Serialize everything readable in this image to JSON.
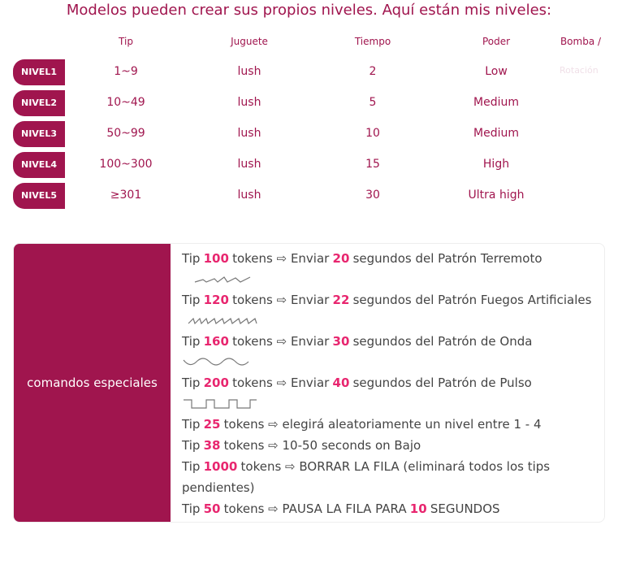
{
  "header": {
    "title": "Modelos pueden crear sus propios niveles. Aquí están mis niveles:"
  },
  "levels": {
    "columns": [
      "Tip",
      "Juguete",
      "Tiempo",
      "Poder",
      "Bomba /"
    ],
    "extra": "Rotación",
    "rows": [
      {
        "name": "NIVEL1",
        "cells": [
          "1~9",
          "lush",
          "2",
          "Low"
        ]
      },
      {
        "name": "NIVEL2",
        "cells": [
          "10~49",
          "lush",
          "5",
          "Medium"
        ]
      },
      {
        "name": "NIVEL3",
        "cells": [
          "50~99",
          "lush",
          "10",
          "Medium"
        ]
      },
      {
        "name": "NIVEL4",
        "cells": [
          "100~300",
          "lush",
          "15",
          "High"
        ]
      },
      {
        "name": "NIVEL5",
        "cells": [
          "≥301",
          "lush",
          "30",
          "Ultra high"
        ]
      }
    ]
  },
  "commands": {
    "label": "comandos especiales",
    "items": [
      [
        {
          "text": "Tip"
        },
        {
          "accent": "100"
        },
        {
          "text": "tokens ⇨ Enviar"
        },
        {
          "accent": "20"
        },
        {
          "text": "segundos del Patrón Terremoto"
        }
      ],
      [
        {
          "text": "Tip"
        },
        {
          "accent": "120"
        },
        {
          "text": "tokens ⇨ Enviar"
        },
        {
          "accent": "22"
        },
        {
          "text": "segundos del Patrón Fuegos Artificiales"
        }
      ],
      [
        {
          "text": "Tip"
        },
        {
          "accent": "160"
        },
        {
          "text": "tokens ⇨ Enviar"
        },
        {
          "accent": "30"
        },
        {
          "text": "segundos del Patrón de Onda"
        }
      ],
      [
        {
          "text": "Tip"
        },
        {
          "accent": "200"
        },
        {
          "text": "tokens ⇨ Enviar"
        },
        {
          "accent": "40"
        },
        {
          "text": "segundos del Patrón de Pulso"
        }
      ],
      [
        {
          "text": "Tip"
        },
        {
          "accent": "25"
        },
        {
          "text": "tokens ⇨ elegirá aleatoriamente un nivel entre 1 - 4"
        }
      ],
      [
        {
          "text": "Tip"
        },
        {
          "accent": "38"
        },
        {
          "text": "tokens ⇨ 10-50 seconds on Bajo"
        }
      ],
      [
        {
          "text": "Tip"
        },
        {
          "accent": "1000"
        },
        {
          "text": "tokens ⇨ BORRAR LA FILA (eliminará todos los tips pendientes)"
        }
      ],
      [
        {
          "text": "Tip"
        },
        {
          "accent": "50"
        },
        {
          "text": "tokens ⇨ PAUSA LA FILA PARA"
        },
        {
          "accent": "10"
        },
        {
          "text": "SEGUNDOS"
        }
      ]
    ]
  }
}
